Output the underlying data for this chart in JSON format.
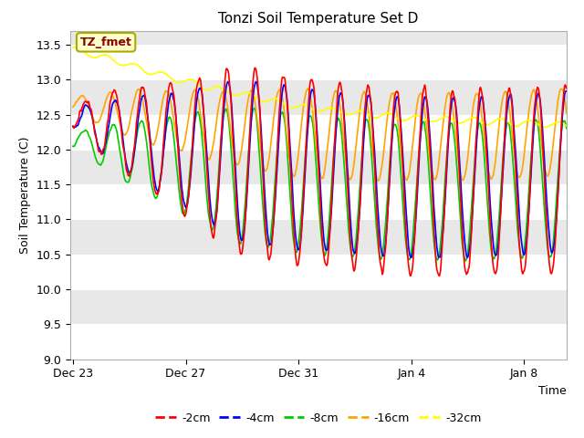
{
  "title": "Tonzi Soil Temperature Set D",
  "xlabel": "Time",
  "ylabel": "Soil Temperature (C)",
  "ylim": [
    9.0,
    13.7
  ],
  "xlim_days": 17.5,
  "annotation_label": "TZ_fmet",
  "annotation_color": "#8B0000",
  "annotation_bg": "#FFFFCC",
  "annotation_border": "#AAAA00",
  "series": [
    {
      "label": "-2cm",
      "color": "#FF0000"
    },
    {
      "label": "-4cm",
      "color": "#0000FF"
    },
    {
      "label": "-8cm",
      "color": "#00CC00"
    },
    {
      "label": "-16cm",
      "color": "#FFA500"
    },
    {
      "label": "-32cm",
      "color": "#FFFF00"
    }
  ],
  "xtick_labels": [
    "Dec 23",
    "Dec 27",
    "Dec 31",
    "Jan 4",
    "Jan 8"
  ],
  "xtick_positions": [
    0,
    4,
    8,
    12,
    16
  ],
  "ytick_values": [
    9.0,
    9.5,
    10.0,
    10.5,
    11.0,
    11.5,
    12.0,
    12.5,
    13.0,
    13.5
  ],
  "background_color": "#FFFFFF",
  "plot_bg_light": "#E8E8E8",
  "plot_bg_white": "#FFFFFF"
}
